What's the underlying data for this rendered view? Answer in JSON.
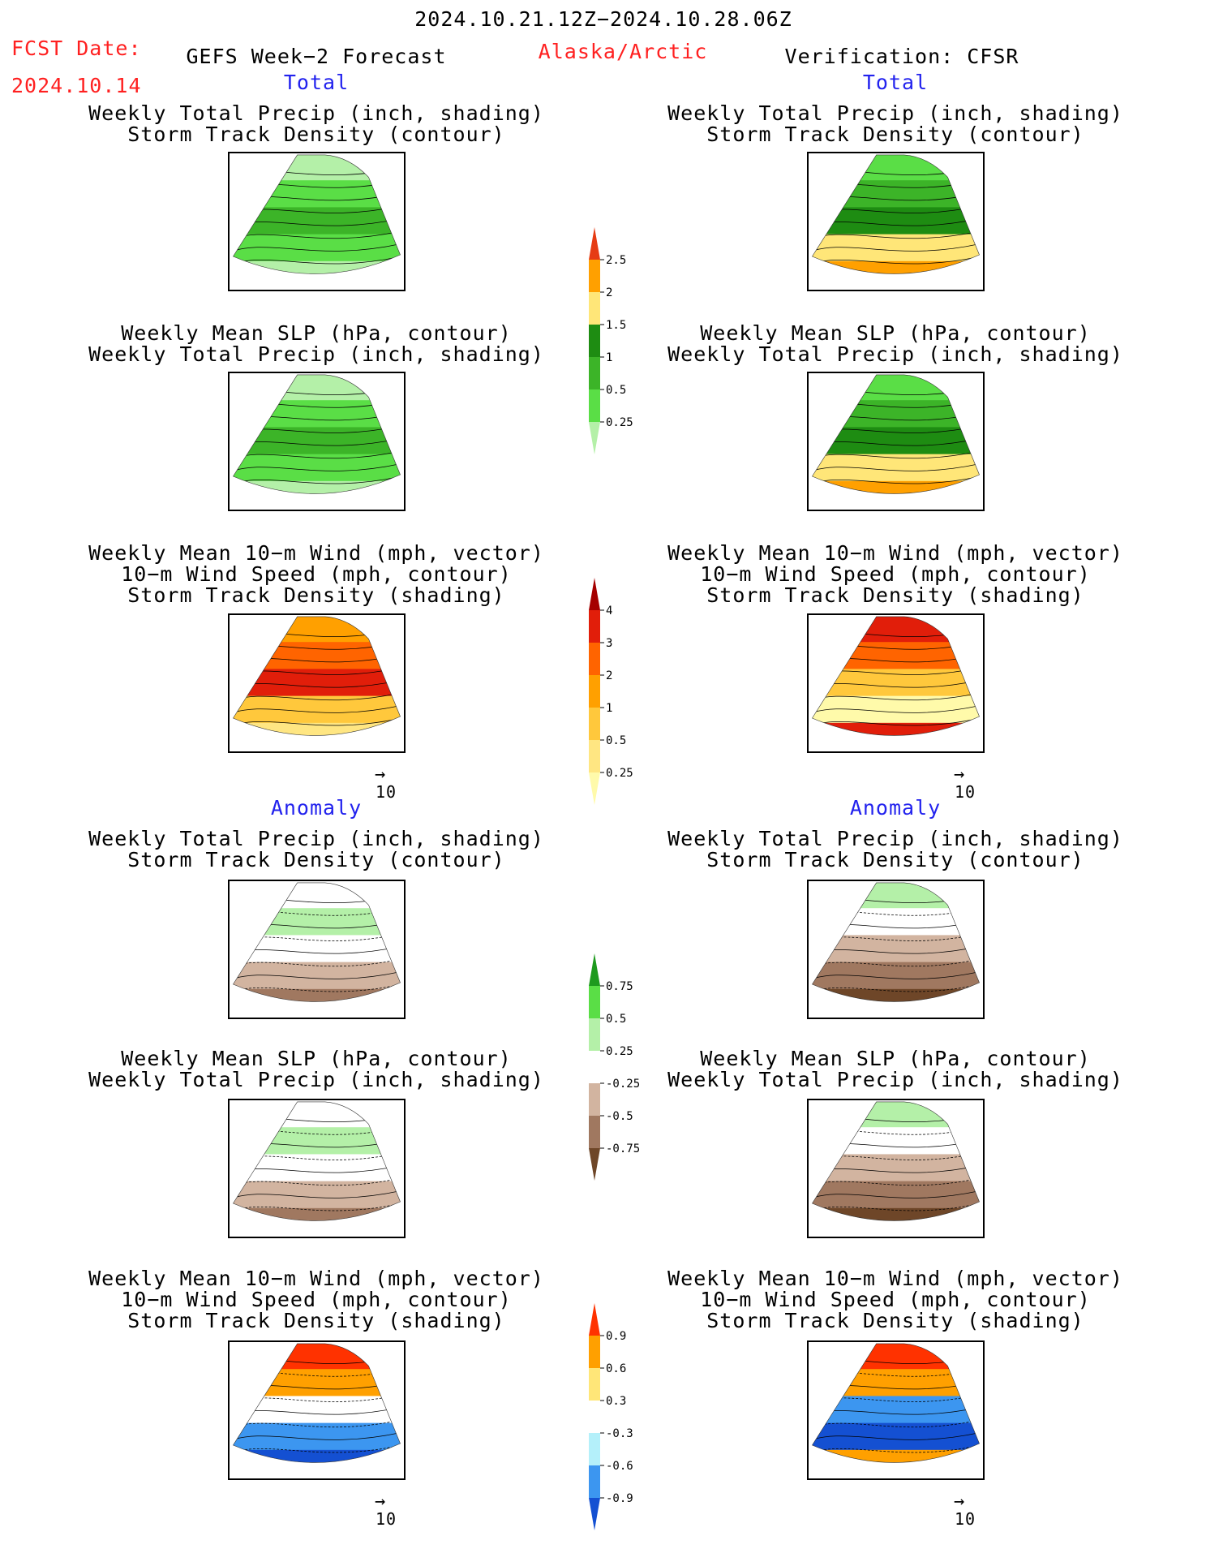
{
  "header": {
    "period": "2024.10.21.12Z−2024.10.28.06Z",
    "fcst_label": "FCST Date:",
    "fcst_date": "2024.10.14",
    "model": "GEFS Week−2 Forecast",
    "region": "Alaska/Arctic",
    "verification": "Verification: CFSR"
  },
  "sections": {
    "total": "Total",
    "anomaly": "Anomaly"
  },
  "titles": {
    "precip": [
      "Weekly Total Precip (inch, shading)",
      "Storm Track Density (contour)"
    ],
    "slp": [
      "Weekly Mean SLP (hPa, contour)",
      "Weekly Total Precip (inch, shading)"
    ],
    "wind": [
      "Weekly Mean 10−m Wind (mph, vector)",
      "10−m Wind Speed (mph, contour)",
      "Storm Track Density (shading)"
    ]
  },
  "vector_reference": "10",
  "chart_data": [
    {
      "type": "heatmap",
      "title": "Weekly Total Precip (inch) — Total",
      "legend_levels": [
        "0.25",
        "0.5",
        "1",
        "1.5",
        "2",
        "2.5"
      ],
      "legend_colors": [
        "#b4f0a8",
        "#5ade46",
        "#3cb428",
        "#1e8c12",
        "#ffe678",
        "#ffa000",
        "#e63c14"
      ]
    },
    {
      "type": "heatmap",
      "title": "Storm Track Density — Total",
      "legend_levels": [
        "0.25",
        "0.5",
        "1",
        "2",
        "3",
        "4"
      ],
      "legend_colors": [
        "#fffaaa",
        "#ffe682",
        "#ffc83c",
        "#ffa000",
        "#ff6400",
        "#e11e0a",
        "#a50000"
      ]
    },
    {
      "type": "heatmap",
      "title": "Weekly Total Precip (inch) — Anomaly",
      "legend_levels": [
        "-0.75",
        "-0.5",
        "-0.25",
        "0.25",
        "0.5",
        "0.75"
      ],
      "legend_colors": [
        "#6e4628",
        "#a07860",
        "#d2b4a0",
        "#ffffff",
        "#b4f0a8",
        "#5ade46",
        "#1e9a1e"
      ]
    },
    {
      "type": "heatmap",
      "title": "Storm Track Density — Anomaly",
      "legend_levels": [
        "-0.9",
        "-0.6",
        "-0.3",
        "0.3",
        "0.6",
        "0.9"
      ],
      "legend_colors": [
        "#1450d2",
        "#3c96f0",
        "#b4f0fa",
        "#ffffff",
        "#ffe678",
        "#ffa000",
        "#ff3200"
      ]
    }
  ]
}
